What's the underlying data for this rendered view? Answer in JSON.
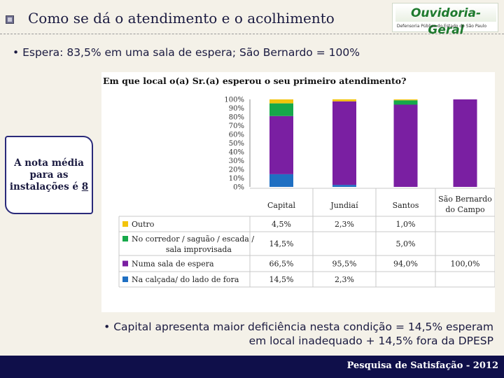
{
  "header": {
    "title": "Como se dá o atendimento e o acolhimento"
  },
  "logo": {
    "main": "Ouvidoria-Geral",
    "sub": "Defensoria Pública do Estado de São Paulo"
  },
  "bullet1": "• Espera: 83,5% em uma sala de espera; São Bernardo = 100%",
  "note": {
    "line1": "A nota média",
    "line2": "para as",
    "line3": "instalações é",
    "value": "8"
  },
  "bullet2": {
    "line1": "• Capital apresenta maior deficiência nesta condição = 14,5% esperam",
    "line2": "em local inadequado + 14,5% fora da DPESP"
  },
  "footer": "Pesquisa de Satisfação - 2012",
  "chart_data": {
    "type": "bar",
    "stacked": true,
    "title": "Em que local o(a) Sr.(a) esperou o seu primeiro atendimento?",
    "categories": [
      "Capital",
      "Jundiaí",
      "Santos",
      "São Bernardo do Campo"
    ],
    "category_lines": [
      [
        "Capital"
      ],
      [
        "Jundiaí"
      ],
      [
        "Santos"
      ],
      [
        "São Bernardo",
        "do Campo"
      ]
    ],
    "ylim": [
      0,
      100
    ],
    "yticks": [
      "0%",
      "10%",
      "20%",
      "30%",
      "40%",
      "50%",
      "60%",
      "70%",
      "80%",
      "90%",
      "100%"
    ],
    "grid": false,
    "legend": "table-below",
    "series": [
      {
        "name": "Na calçada/ do lado de fora",
        "name_lines": [
          "Na calçada/ do lado de fora"
        ],
        "color": "#1f6fc2",
        "values": [
          14.5,
          2.3,
          0,
          0
        ],
        "labels": [
          "14,5%",
          "2,3%",
          "",
          ""
        ]
      },
      {
        "name": "Numa sala de espera",
        "name_lines": [
          "Numa sala de espera"
        ],
        "color": "#7a1fa2",
        "values": [
          66.5,
          95.5,
          94.0,
          100.0
        ],
        "labels": [
          "66,5%",
          "95,5%",
          "94,0%",
          "100,0%"
        ]
      },
      {
        "name": "No corredor / saguão / escada / sala improvisada",
        "name_lines": [
          "No corredor / saguão / escada /",
          "sala improvisada"
        ],
        "color": "#16a84a",
        "values": [
          14.5,
          0,
          5.0,
          0
        ],
        "labels": [
          "14,5%",
          "",
          "5,0%",
          ""
        ]
      },
      {
        "name": "Outro",
        "name_lines": [
          "Outro"
        ],
        "color": "#f2c40c",
        "values": [
          4.5,
          2.3,
          1.0,
          0
        ],
        "labels": [
          "4,5%",
          "2,3%",
          "1,0%",
          ""
        ]
      }
    ]
  }
}
